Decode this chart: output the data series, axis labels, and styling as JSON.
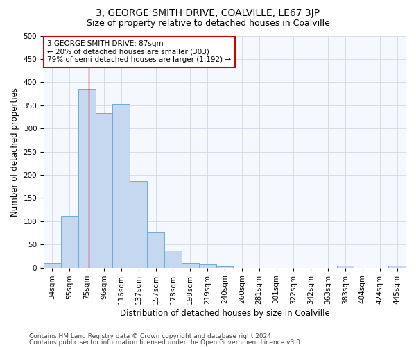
{
  "title": "3, GEORGE SMITH DRIVE, COALVILLE, LE67 3JP",
  "subtitle": "Size of property relative to detached houses in Coalville",
  "xlabel": "Distribution of detached houses by size in Coalville",
  "ylabel": "Number of detached properties",
  "categories": [
    "34sqm",
    "55sqm",
    "75sqm",
    "96sqm",
    "116sqm",
    "137sqm",
    "157sqm",
    "178sqm",
    "198sqm",
    "219sqm",
    "240sqm",
    "260sqm",
    "281sqm",
    "301sqm",
    "322sqm",
    "342sqm",
    "363sqm",
    "383sqm",
    "404sqm",
    "424sqm",
    "445sqm"
  ],
  "values": [
    10,
    112,
    385,
    333,
    353,
    186,
    76,
    37,
    10,
    7,
    3,
    0,
    0,
    0,
    0,
    0,
    0,
    4,
    0,
    0,
    4
  ],
  "bar_color": "#c5d8f0",
  "bar_edge_color": "#6baed6",
  "vline_color": "#cc0000",
  "vline_x_idx": 2.1,
  "annotation_text": "3 GEORGE SMITH DRIVE: 87sqm\n← 20% of detached houses are smaller (303)\n79% of semi-detached houses are larger (1,192) →",
  "annotation_box_facecolor": "#ffffff",
  "annotation_box_edgecolor": "#cc0000",
  "ylim": [
    0,
    500
  ],
  "yticks": [
    0,
    50,
    100,
    150,
    200,
    250,
    300,
    350,
    400,
    450,
    500
  ],
  "footer1": "Contains HM Land Registry data © Crown copyright and database right 2024.",
  "footer2": "Contains public sector information licensed under the Open Government Licence v3.0.",
  "bg_color": "#ffffff",
  "plot_bg_color": "#f5f8ff",
  "grid_color": "#d0d8e8",
  "title_fontsize": 10,
  "subtitle_fontsize": 9,
  "axis_label_fontsize": 8.5,
  "tick_fontsize": 7.5,
  "annotation_fontsize": 7.5,
  "footer_fontsize": 6.5
}
